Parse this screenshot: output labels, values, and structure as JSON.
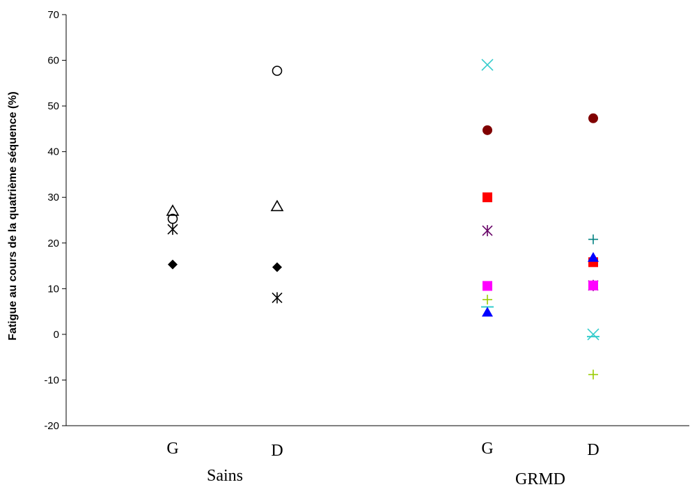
{
  "chart_data": {
    "type": "scatter",
    "title": "",
    "ylabel": "Fatigue au cours de la quatrième séquence (%)",
    "ylim": [
      -20,
      70
    ],
    "yticks": [
      -20,
      -10,
      0,
      10,
      20,
      30,
      40,
      50,
      60,
      70
    ],
    "grid": false,
    "categories": [
      {
        "label": "G",
        "group": "Sains"
      },
      {
        "label": "D",
        "group": "Sains"
      },
      {
        "label": "G",
        "group": "GRMD"
      },
      {
        "label": "D",
        "group": "GRMD"
      }
    ],
    "groups": [
      "Sains",
      "GRMD"
    ],
    "series": [
      {
        "marker": "diamond-filled",
        "color": "#000000",
        "values": [
          15.3,
          14.7,
          null,
          null
        ]
      },
      {
        "marker": "triangle-open",
        "color": "#000000",
        "values": [
          27.0,
          28.0,
          null,
          null
        ]
      },
      {
        "marker": "circle-open",
        "color": "#000000",
        "values": [
          25.3,
          57.7,
          null,
          null
        ]
      },
      {
        "marker": "asterisk",
        "color": "#000000",
        "values": [
          23.0,
          8.0,
          null,
          null
        ]
      },
      {
        "marker": "x",
        "color": "#33CCCC",
        "values": [
          null,
          null,
          59.0,
          0.0
        ]
      },
      {
        "marker": "circle-filled",
        "color": "#800000",
        "values": [
          null,
          null,
          44.7,
          47.3
        ]
      },
      {
        "marker": "square-filled",
        "color": "#FF0000",
        "values": [
          null,
          null,
          30.0,
          15.8
        ]
      },
      {
        "marker": "asterisk",
        "color": "#660066",
        "values": [
          null,
          null,
          22.7,
          10.7
        ]
      },
      {
        "marker": "square-filled",
        "color": "#FF00FF",
        "values": [
          null,
          null,
          10.6,
          10.7
        ]
      },
      {
        "marker": "plus",
        "color": "#99CC00",
        "values": [
          null,
          null,
          7.6,
          -8.8
        ]
      },
      {
        "marker": "dash",
        "color": "#33CCCC",
        "values": [
          null,
          null,
          6.0,
          -0.5
        ]
      },
      {
        "marker": "triangle-filled",
        "color": "#0000FF",
        "values": [
          null,
          null,
          4.8,
          16.8
        ]
      },
      {
        "marker": "plus",
        "color": "#008080",
        "values": [
          null,
          null,
          null,
          20.8
        ]
      }
    ]
  }
}
